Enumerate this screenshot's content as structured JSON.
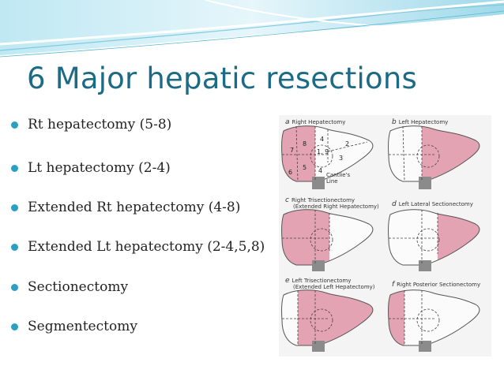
{
  "slide": {
    "title": "6 Major hepatic resections",
    "accent_color": "#1d6a86",
    "bullet_color": "#2a9fc3",
    "resected_color": "#e3a3b2"
  },
  "bullets": [
    {
      "text": "Rt hepatectomy (5-8)"
    },
    {
      "text": "Lt hepatectomy (2-4)"
    },
    {
      "text": "Extended Rt hepatectomy (4-8)"
    },
    {
      "text": "Extended Lt hepatectomy (2-4,5,8)"
    },
    {
      "text": "Sectionectomy"
    },
    {
      "text": "Segmentectomy"
    }
  ],
  "figure": {
    "panels": [
      {
        "letter": "a",
        "caption": "Right Hepatectomy",
        "caption2": ""
      },
      {
        "letter": "b",
        "caption": "Left Hepatectomy",
        "caption2": ""
      },
      {
        "letter": "c",
        "caption": "Right Trisectionectomy",
        "caption2": "(Extended Right Hepatectomy)"
      },
      {
        "letter": "d",
        "caption": "Left Lateral Sectionectomy",
        "caption2": ""
      },
      {
        "letter": "e",
        "caption": "Left Trisectionectomy",
        "caption2": "(Extended Left Hepatectomy)"
      },
      {
        "letter": "f",
        "caption": "Right Posterior Sectionectomy",
        "caption2": ""
      }
    ],
    "segments": {
      "s4a": "4",
      "s8": "8",
      "s7": "7",
      "s19": "1, 9",
      "s2": "2",
      "s3": "3",
      "s5": "5",
      "s4b": "4",
      "s6": "6"
    },
    "cantlie_label": "Cantlie's Line"
  }
}
